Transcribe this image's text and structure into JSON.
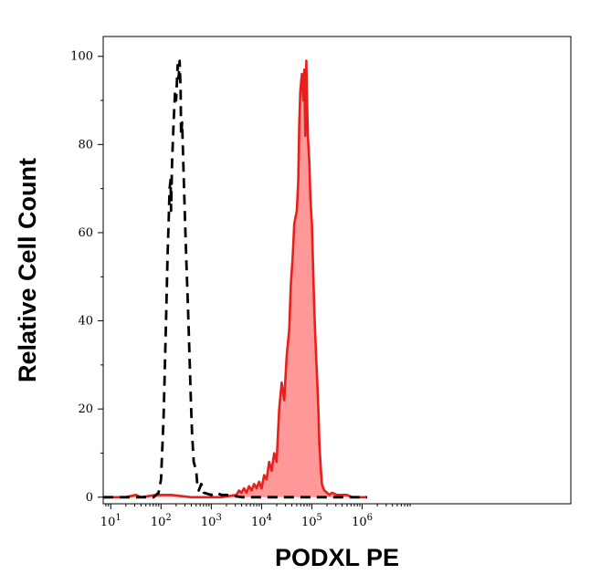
{
  "chart_data": {
    "type": "area",
    "title": "",
    "xlabel": "PODXL PE",
    "ylabel": "Relative Cell Count",
    "x_scale": "log",
    "xlim": [
      0.85,
      10.15
    ],
    "ylim": [
      -1.5,
      104.5
    ],
    "grid": false,
    "legend": "none",
    "x_ticks": [
      {
        "base": "10",
        "exp": "1",
        "x": 1
      },
      {
        "base": "10",
        "exp": "2",
        "x": 2
      },
      {
        "base": "10",
        "exp": "3",
        "x": 3
      },
      {
        "base": "10",
        "exp": "4",
        "x": 4
      },
      {
        "base": "10",
        "exp": "5",
        "x": 5
      },
      {
        "base": "10",
        "exp": "6",
        "x": 6
      }
    ],
    "y_ticks": [
      "0",
      "20",
      "40",
      "60",
      "80",
      "100"
    ],
    "series": [
      {
        "style": "dashed-outline",
        "color": "#000000",
        "x_log10": [
          0.8,
          1.85,
          1.95,
          2.0,
          2.05,
          2.1,
          2.13,
          2.15,
          2.17,
          2.19,
          2.2,
          2.22,
          2.25,
          2.28,
          2.3,
          2.33,
          2.35,
          2.37,
          2.39,
          2.4,
          2.42,
          2.45,
          2.48,
          2.5,
          2.53,
          2.55,
          2.6,
          2.62,
          2.65,
          2.7,
          2.72,
          2.75,
          2.8,
          2.85,
          3.0,
          3.1,
          3.2,
          3.3,
          3.6,
          6.1
        ],
        "y": [
          0,
          0,
          1,
          4,
          18,
          40,
          55,
          62,
          70,
          72,
          65,
          76,
          85,
          92,
          90,
          98,
          95,
          99,
          92,
          82,
          85,
          73,
          62,
          55,
          45,
          38,
          20,
          14,
          8,
          6,
          3,
          1.5,
          3,
          1,
          0.5,
          1,
          0.5,
          0.5,
          0,
          0
        ]
      },
      {
        "style": "filled",
        "color": "#e8201d",
        "fill": "#ff9999",
        "x_log10": [
          0.8,
          1.3,
          1.5,
          1.6,
          1.9,
          2.2,
          2.6,
          3.2,
          3.5,
          3.55,
          3.6,
          3.65,
          3.7,
          3.75,
          3.8,
          3.85,
          3.9,
          3.95,
          4.0,
          4.05,
          4.1,
          4.15,
          4.2,
          4.25,
          4.3,
          4.35,
          4.4,
          4.45,
          4.5,
          4.55,
          4.58,
          4.62,
          4.65,
          4.7,
          4.73,
          4.75,
          4.77,
          4.8,
          4.83,
          4.85,
          4.87,
          4.89,
          4.9,
          4.92,
          4.95,
          4.97,
          5.0,
          5.03,
          5.05,
          5.08,
          5.1,
          5.13,
          5.15,
          5.18,
          5.2,
          5.23,
          5.25,
          5.3,
          5.35,
          5.4,
          5.5,
          5.6,
          5.7,
          5.8,
          6.0,
          6.1
        ],
        "y": [
          0,
          0,
          0.5,
          0,
          0.5,
          0.5,
          0,
          0,
          0.5,
          1.5,
          1,
          2,
          1,
          2.5,
          1.5,
          3,
          2,
          3.5,
          2,
          5,
          4,
          8,
          6,
          10,
          8,
          20,
          26,
          22,
          32,
          38,
          48,
          55,
          62,
          65,
          72,
          85,
          92,
          96,
          90,
          97,
          82,
          99,
          92,
          82,
          76,
          68,
          62,
          50,
          42,
          33,
          28,
          20,
          12,
          6,
          3,
          2,
          1.5,
          1,
          0.5,
          1,
          0.5,
          0.5,
          0.5,
          0,
          0,
          0
        ]
      }
    ]
  }
}
